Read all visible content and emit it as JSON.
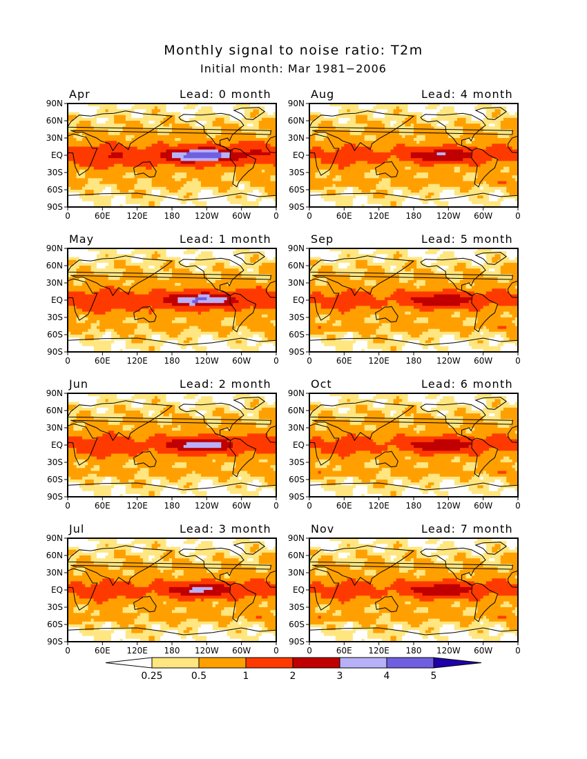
{
  "title": "Monthly signal to noise ratio: T2m",
  "subtitle": "Initial month: Mar 1981−2006",
  "lat_labels": [
    "90N",
    "60N",
    "30N",
    "EQ",
    "30S",
    "60S",
    "90S"
  ],
  "lon_labels": [
    "0",
    "60E",
    "120E",
    "180",
    "120W",
    "60W",
    "0"
  ],
  "panels": [
    {
      "month": "Apr",
      "lead": "Lead: 0 month",
      "strength": 1.0
    },
    {
      "month": "Aug",
      "lead": "Lead: 4 month",
      "strength": 0.58
    },
    {
      "month": "May",
      "lead": "Lead: 1 month",
      "strength": 0.85
    },
    {
      "month": "Sep",
      "lead": "Lead: 5 month",
      "strength": 0.55
    },
    {
      "month": "Jun",
      "lead": "Lead: 2 month",
      "strength": 0.72
    },
    {
      "month": "Oct",
      "lead": "Lead: 6 month",
      "strength": 0.55
    },
    {
      "month": "Jul",
      "lead": "Lead: 3 month",
      "strength": 0.62
    },
    {
      "month": "Nov",
      "lead": "Lead: 7 month",
      "strength": 0.55
    }
  ],
  "colorbar": {
    "labels": [
      "0.25",
      "0.5",
      "1",
      "2",
      "3",
      "4",
      "5"
    ],
    "colors": [
      "#ffffff",
      "#ffe680",
      "#ffa000",
      "#ff3a00",
      "#c00000",
      "#b8b0f8",
      "#7060e0",
      "#2000a8"
    ]
  }
}
